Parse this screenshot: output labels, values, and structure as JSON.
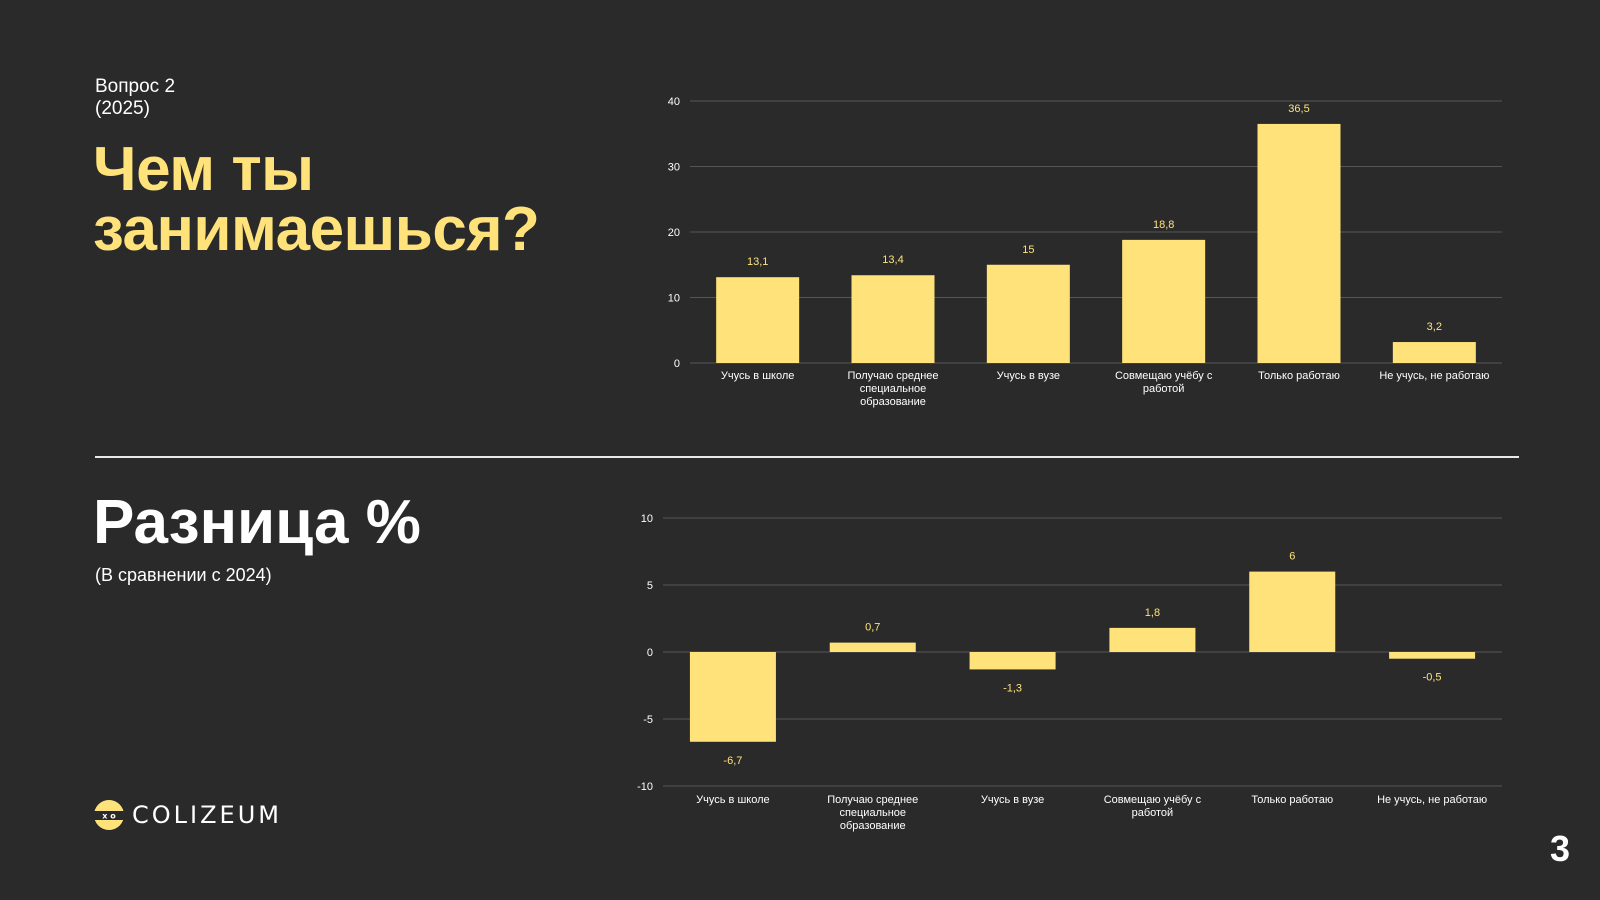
{
  "slide": {
    "question_number": "Вопрос 2",
    "question_year": "(2025)",
    "title_line1": "Чем ты",
    "title_line2": "занимаешься?",
    "diff_title": "Разница %",
    "diff_subtitle": "(В сравнении с 2024)",
    "logo_text": "COLIZEUM",
    "logo_icon": "colizeum-mask-icon",
    "page_number": "3",
    "accent_color": "#ffe37a",
    "background_color": "#2a2a2a"
  },
  "chart_data": [
    {
      "type": "bar",
      "categories": [
        [
          "Учусь в школе"
        ],
        [
          "Получаю среднее",
          "специальное",
          "образование"
        ],
        [
          "Учусь в вузе"
        ],
        [
          "Совмещаю учёбу с",
          "работой"
        ],
        [
          "Только работаю"
        ],
        [
          "Не учусь, не работаю"
        ]
      ],
      "values": [
        13.1,
        13.4,
        15,
        18.8,
        36.5,
        3.2
      ],
      "value_labels": [
        "13,1",
        "13,4",
        "15",
        "18,8",
        "36,5",
        "3,2"
      ],
      "ylim": [
        0,
        40
      ],
      "yticks": [
        0,
        10,
        20,
        30,
        40
      ],
      "grid": true,
      "bar_color": "#ffe37a",
      "title": "",
      "xlabel": "",
      "ylabel": ""
    },
    {
      "type": "bar",
      "categories": [
        [
          "Учусь в школе"
        ],
        [
          "Получаю среднее",
          "специальное",
          "образование"
        ],
        [
          "Учусь в вузе"
        ],
        [
          "Совмещаю учёбу с",
          "работой"
        ],
        [
          "Только работаю"
        ],
        [
          "Не учусь, не работаю"
        ]
      ],
      "values": [
        -6.7,
        0.7,
        -1.3,
        1.8,
        6,
        -0.5
      ],
      "value_labels": [
        "-6,7",
        "0,7",
        "-1,3",
        "1,8",
        "6",
        "-0,5"
      ],
      "ylim": [
        -10,
        10
      ],
      "yticks": [
        -10,
        -5,
        0,
        5,
        10
      ],
      "grid": true,
      "bar_color": "#ffe37a",
      "title": "",
      "xlabel": "",
      "ylabel": ""
    }
  ]
}
